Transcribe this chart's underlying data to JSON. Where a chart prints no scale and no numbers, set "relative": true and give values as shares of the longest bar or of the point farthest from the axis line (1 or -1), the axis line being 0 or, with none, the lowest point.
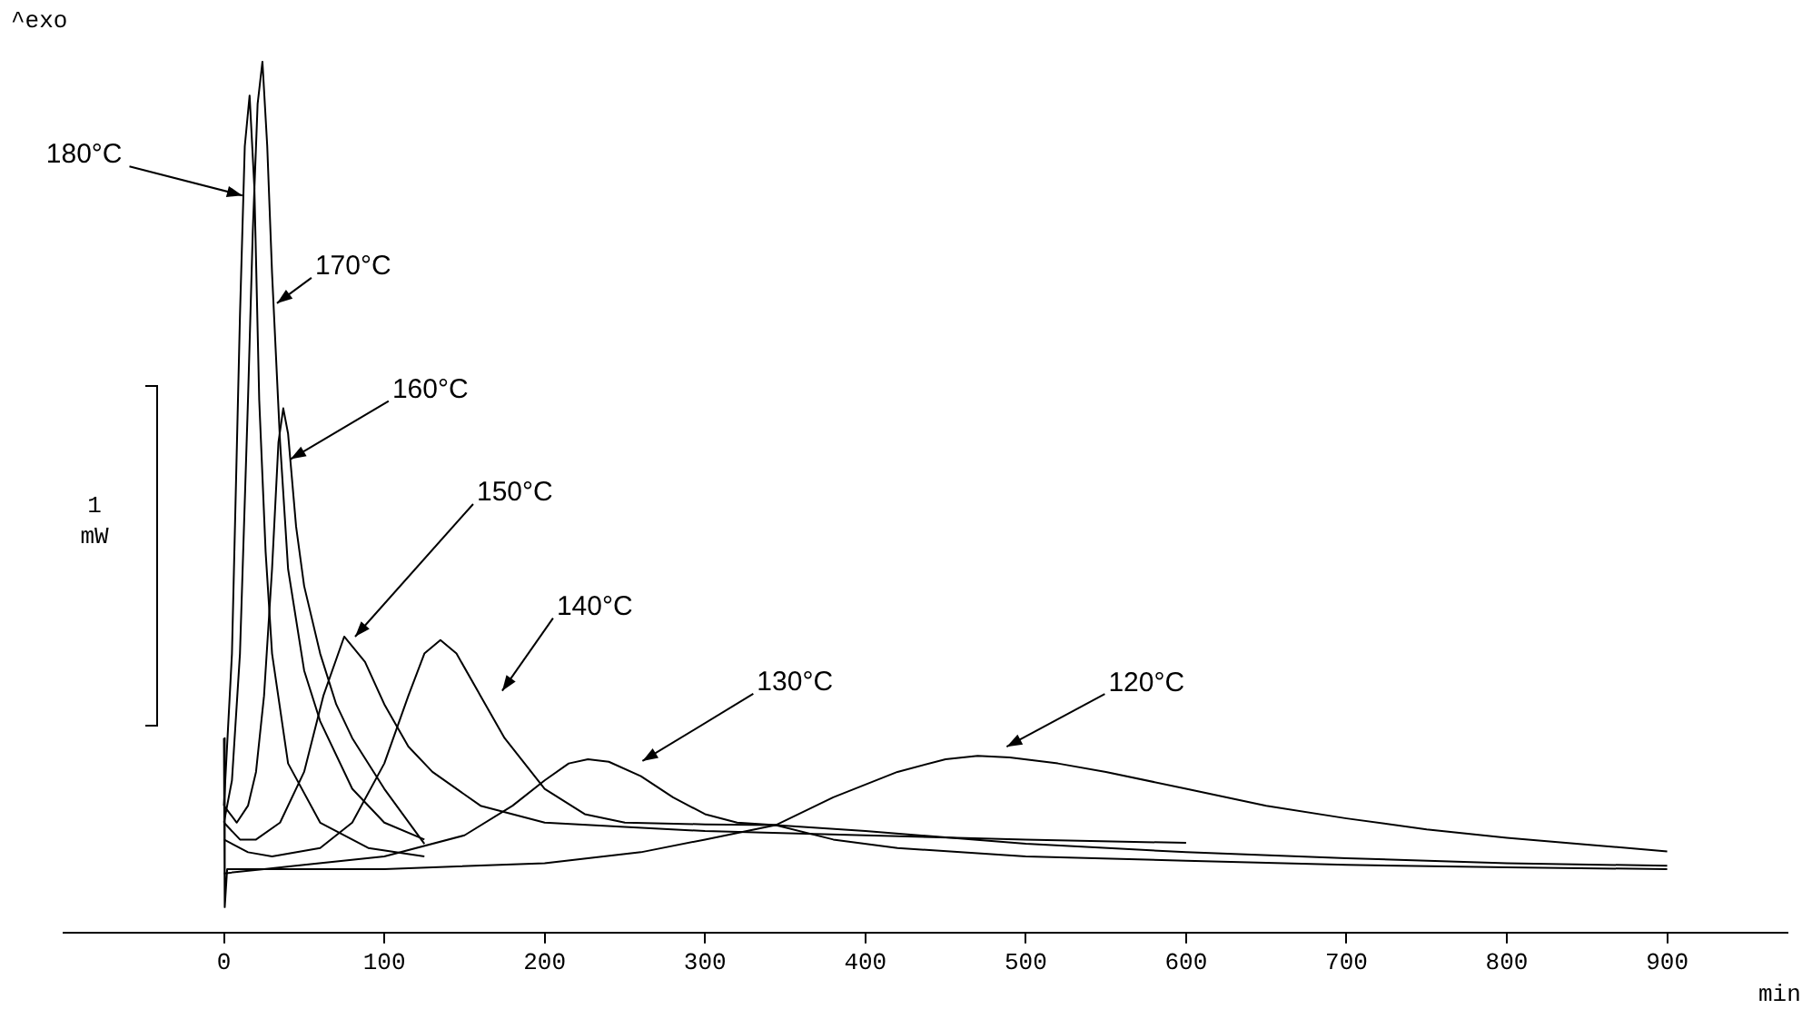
{
  "chart_data": {
    "type": "line",
    "relative": true,
    "xlabel": "min",
    "xlim": [
      -100,
      975
    ],
    "xticks": [
      0,
      100,
      200,
      300,
      400,
      500,
      600,
      700,
      800,
      900
    ],
    "annotations": [
      "^exo",
      "1 mW"
    ],
    "legend": false,
    "grid": false,
    "marker": "none",
    "line_style": "solid",
    "series": [
      {
        "name": "180°C",
        "color": "#000000",
        "x": [
          0,
          5,
          10,
          13,
          16,
          19,
          22,
          26,
          30,
          40,
          60,
          90,
          125
        ],
        "values": [
          0.12,
          0.3,
          0.7,
          0.9,
          0.96,
          0.85,
          0.6,
          0.42,
          0.3,
          0.17,
          0.1,
          0.07,
          0.06
        ]
      },
      {
        "name": "170°C",
        "color": "#000000",
        "x": [
          0,
          5,
          10,
          15,
          18,
          21,
          24,
          27,
          30,
          35,
          40,
          50,
          60,
          80,
          100,
          125
        ],
        "values": [
          0.1,
          0.15,
          0.3,
          0.6,
          0.8,
          0.95,
          1.0,
          0.9,
          0.75,
          0.55,
          0.4,
          0.28,
          0.22,
          0.14,
          0.1,
          0.08
        ]
      },
      {
        "name": "160°C",
        "color": "#000000",
        "x": [
          0,
          8,
          15,
          20,
          25,
          30,
          34,
          37,
          40,
          45,
          50,
          60,
          70,
          80,
          100,
          125
        ],
        "values": [
          0.12,
          0.1,
          0.12,
          0.16,
          0.25,
          0.4,
          0.55,
          0.59,
          0.56,
          0.45,
          0.38,
          0.3,
          0.24,
          0.2,
          0.14,
          0.075
        ]
      },
      {
        "name": "150°C",
        "color": "#000000",
        "x": [
          0,
          10,
          20,
          35,
          50,
          62,
          75,
          88,
          100,
          115,
          130,
          160,
          200,
          250,
          300,
          400,
          500,
          600
        ],
        "values": [
          0.1,
          0.08,
          0.08,
          0.1,
          0.16,
          0.25,
          0.32,
          0.29,
          0.24,
          0.19,
          0.16,
          0.12,
          0.1,
          0.095,
          0.09,
          0.085,
          0.08,
          0.076
        ]
      },
      {
        "name": "140°C",
        "color": "#000000",
        "x": [
          0,
          15,
          30,
          60,
          80,
          100,
          115,
          125,
          135,
          145,
          160,
          175,
          200,
          225,
          250,
          300,
          344,
          400,
          500,
          600,
          700,
          800,
          900
        ],
        "values": [
          0.08,
          0.065,
          0.06,
          0.07,
          0.1,
          0.17,
          0.25,
          0.3,
          0.316,
          0.3,
          0.25,
          0.2,
          0.14,
          0.11,
          0.1,
          0.098,
          0.097,
          0.09,
          0.075,
          0.065,
          0.058,
          0.052,
          0.049
        ]
      },
      {
        "name": "130°C",
        "color": "#000000",
        "x": [
          0,
          25,
          50,
          100,
          150,
          180,
          200,
          215,
          227,
          240,
          260,
          280,
          300,
          320,
          344,
          380,
          420,
          500,
          600,
          700,
          800,
          900
        ],
        "values": [
          0.04,
          0.045,
          0.05,
          0.06,
          0.085,
          0.12,
          0.15,
          0.17,
          0.175,
          0.172,
          0.155,
          0.13,
          0.11,
          0.1,
          0.097,
          0.08,
          0.07,
          0.06,
          0.055,
          0.05,
          0.047,
          0.045
        ]
      },
      {
        "name": "120°C",
        "color": "#000000",
        "x": [
          0,
          0.5,
          2,
          30,
          100,
          200,
          260,
          300,
          344,
          380,
          420,
          450,
          470,
          490,
          520,
          550,
          600,
          650,
          700,
          750,
          800,
          850,
          900
        ],
        "values": [
          0.2,
          0,
          0.045,
          0.045,
          0.045,
          0.052,
          0.065,
          0.08,
          0.097,
          0.13,
          0.16,
          0.175,
          0.179,
          0.177,
          0.17,
          0.16,
          0.14,
          0.12,
          0.105,
          0.092,
          0.082,
          0.074,
          0.066
        ]
      }
    ]
  }
}
